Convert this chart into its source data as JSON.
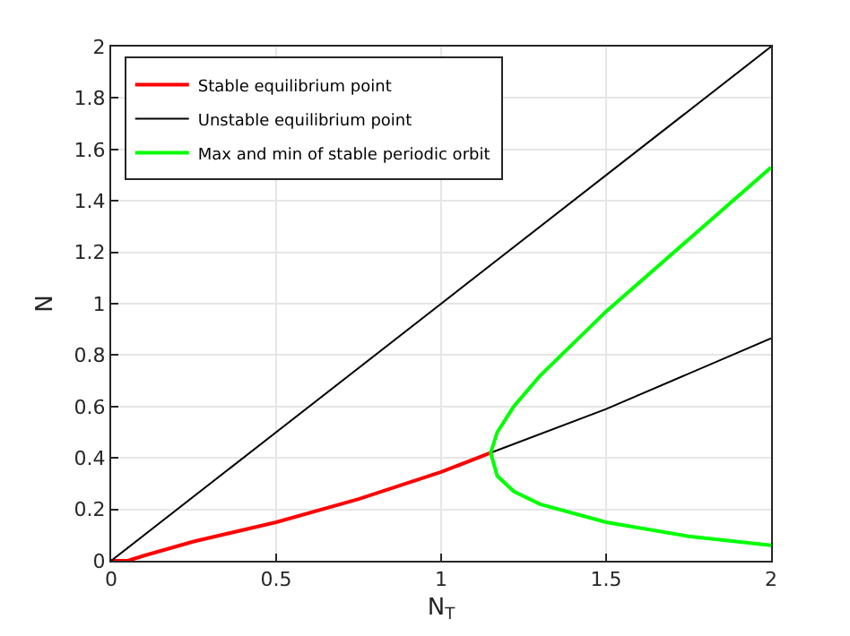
{
  "chart_data": {
    "type": "line",
    "xlabel": "N$_{T}$",
    "ylabel": "N",
    "xlim": [
      0,
      2
    ],
    "xticks": [
      0,
      0.5,
      1,
      1.5,
      2
    ],
    "ylim": [
      0,
      2
    ],
    "yticks": [
      0,
      0.2,
      0.4,
      0.6,
      0.8,
      1,
      1.2,
      1.4,
      1.6,
      1.8,
      2
    ],
    "grid": true,
    "legend": "top left",
    "marker": "none",
    "line_style": "solid",
    "series": [
      {
        "name": "Stable equilibrium point",
        "color": "#ff0000",
        "x": [
          0,
          0.05,
          0.1,
          0.25,
          0.5,
          0.75,
          1,
          1.15
        ],
        "values": [
          0,
          0,
          0.02,
          0.075,
          0.15,
          0.24,
          0.345,
          0.42
        ]
      },
      {
        "name": "Unstable equilibrium point",
        "color": "#000000",
        "x": [
          0,
          2
        ],
        "values": [
          0,
          2
        ]
      },
      {
        "color": "#000000",
        "x": [
          1.15,
          1.5,
          2
        ],
        "values": [
          0.42,
          0.59,
          0.865
        ]
      },
      {
        "name": "Max and min of stable periodic orbit",
        "color": "#00ff00",
        "x": [
          2,
          1.75,
          1.5,
          1.3,
          1.22,
          1.17,
          1.15,
          1.17,
          1.22,
          1.3,
          1.5,
          1.75,
          2
        ],
        "values": [
          1.53,
          1.25,
          0.97,
          0.72,
          0.6,
          0.5,
          0.42,
          0.33,
          0.27,
          0.22,
          0.15,
          0.095,
          0.06
        ]
      }
    ]
  }
}
